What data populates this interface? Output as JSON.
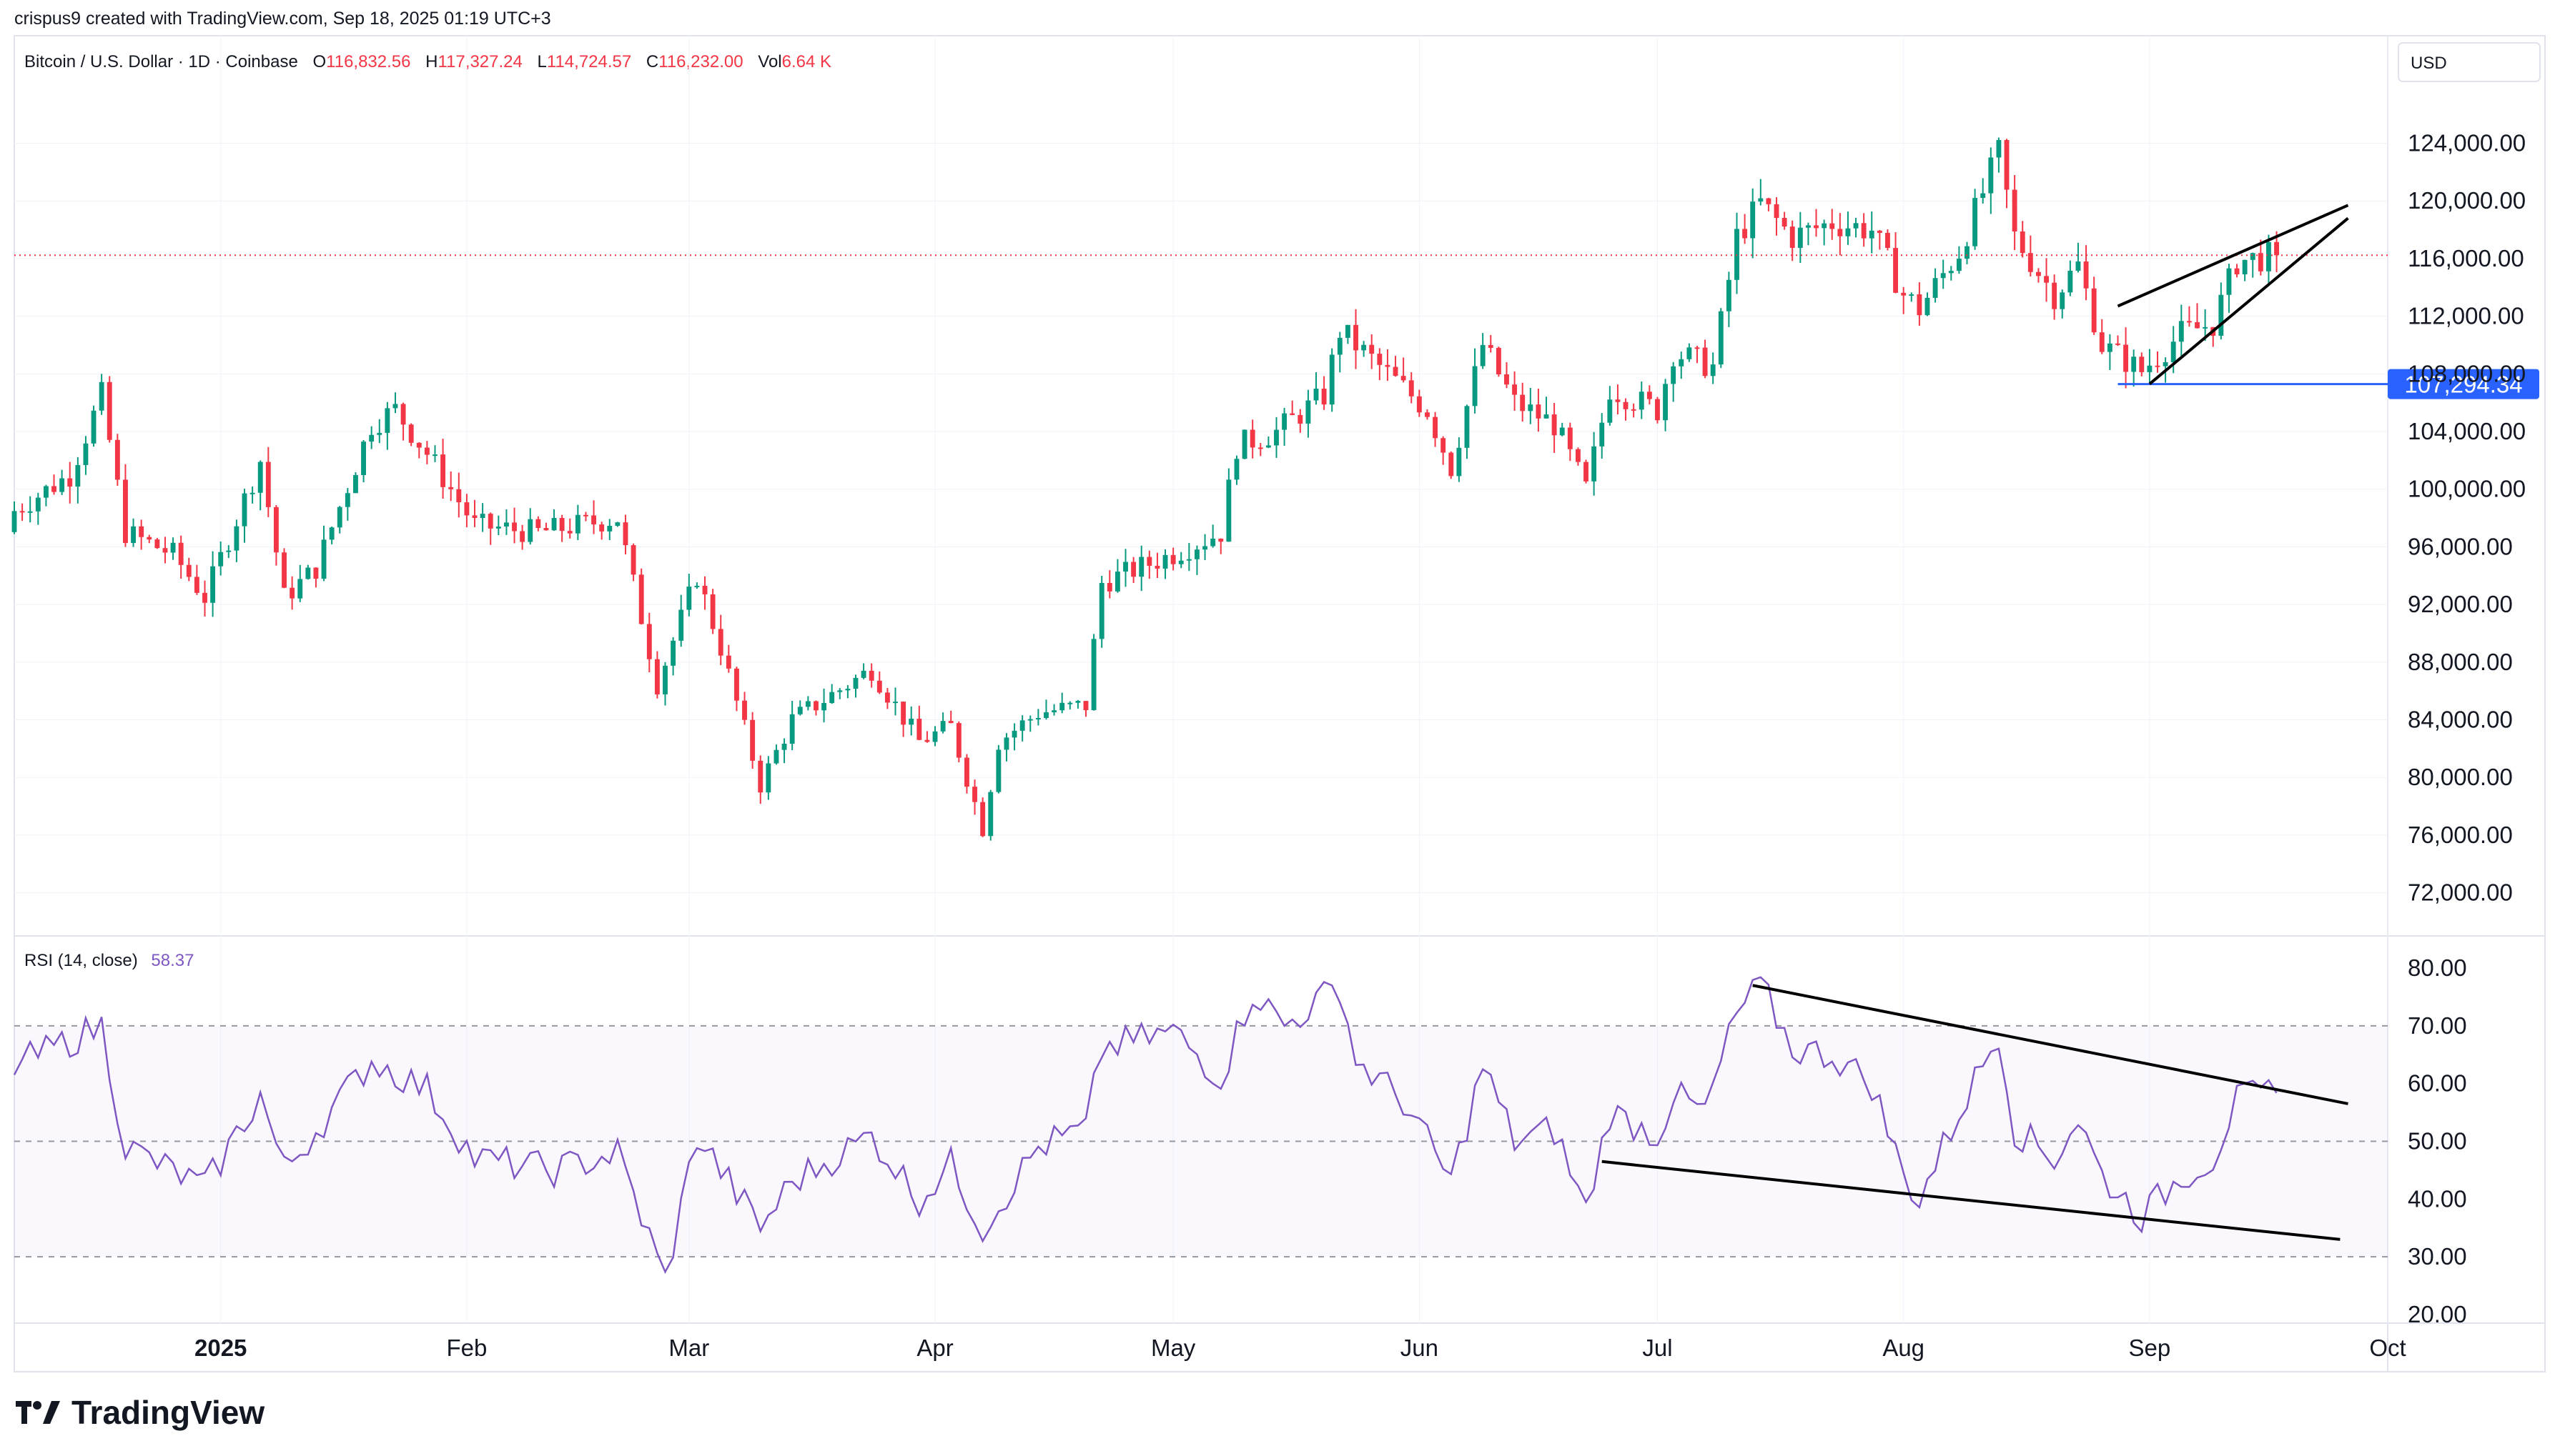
{
  "credit": "crispus9 created with TradingView.com, Sep 18, 2025 01:19 UTC+3",
  "symbol": {
    "name": "Bitcoin / U.S. Dollar · 1D · Coinbase",
    "o_label": "O",
    "o_value": "116,832.56",
    "h_label": "H",
    "h_value": "117,327.24",
    "l_label": "L",
    "l_value": "114,724.57",
    "c_label": "C",
    "c_value": "116,232.00",
    "vol_label": "Vol",
    "vol_value": "6.64 K"
  },
  "currency": "USD",
  "support_label": "107,294.34",
  "price_ticks": [
    "124,000.00",
    "120,000.00",
    "116,000.00",
    "112,000.00",
    "104,000.00",
    "100,000.00",
    "96,000.00",
    "92,000.00",
    "88,000.00",
    "84,000.00",
    "80,000.00",
    "76,000.00",
    "72,000.00"
  ],
  "hidden_tick": "108,000.00",
  "rsi": {
    "label": "RSI (14, close)",
    "value": "58.37"
  },
  "rsi_ticks": [
    "80.00",
    "70.00",
    "60.00",
    "50.00",
    "40.00",
    "30.00",
    "20.00"
  ],
  "date_ticks": [
    "2025",
    "Feb",
    "Mar",
    "Apr",
    "May",
    "Jun",
    "Jul",
    "Aug",
    "Sep",
    "Oct"
  ],
  "brand": "TradingView",
  "colors": {
    "up": "#089981",
    "down": "#f23645",
    "blue": "#2962ff",
    "rsi": "#7e57c2",
    "grid": "#f0f3fa",
    "text": "#131722"
  },
  "chart_data": [
    {
      "type": "candlestick",
      "title": "Bitcoin / U.S. Dollar · 1D · Coinbase",
      "x_range": [
        "2024-12-06",
        "2025-10-01"
      ],
      "y_range": [
        70000,
        127000
      ],
      "y_ticks": [
        72000,
        76000,
        80000,
        84000,
        88000,
        92000,
        96000,
        100000,
        104000,
        108000,
        112000,
        116000,
        120000,
        124000
      ],
      "last_price_line": 116232,
      "support_line": 107294.34,
      "anchors": [
        {
          "date": "2024-12-06",
          "price": 98500
        },
        {
          "date": "2024-12-13",
          "price": 101000
        },
        {
          "date": "2024-12-17",
          "price": 106500
        },
        {
          "date": "2024-12-20",
          "price": 97000
        },
        {
          "date": "2024-12-26",
          "price": 95500
        },
        {
          "date": "2024-12-30",
          "price": 92500
        },
        {
          "date": "2025-01-06",
          "price": 102000
        },
        {
          "date": "2025-01-09",
          "price": 92500
        },
        {
          "date": "2025-01-13",
          "price": 94500
        },
        {
          "date": "2025-01-20",
          "price": 104500
        },
        {
          "date": "2025-01-23",
          "price": 105500
        },
        {
          "date": "2025-01-27",
          "price": 102500
        },
        {
          "date": "2025-02-02",
          "price": 97500
        },
        {
          "date": "2025-02-10",
          "price": 97000
        },
        {
          "date": "2025-02-20",
          "price": 98000
        },
        {
          "date": "2025-02-25",
          "price": 86500
        },
        {
          "date": "2025-03-02",
          "price": 94000
        },
        {
          "date": "2025-03-05",
          "price": 89000
        },
        {
          "date": "2025-03-10",
          "price": 79500
        },
        {
          "date": "2025-03-14",
          "price": 84000
        },
        {
          "date": "2025-03-24",
          "price": 87500
        },
        {
          "date": "2025-03-30",
          "price": 82500
        },
        {
          "date": "2025-04-03",
          "price": 83500
        },
        {
          "date": "2025-04-07",
          "price": 76500
        },
        {
          "date": "2025-04-09",
          "price": 82500
        },
        {
          "date": "2025-04-14",
          "price": 84500
        },
        {
          "date": "2025-04-20",
          "price": 85000
        },
        {
          "date": "2025-04-22",
          "price": 93500
        },
        {
          "date": "2025-05-01",
          "price": 95500
        },
        {
          "date": "2025-05-07",
          "price": 97000
        },
        {
          "date": "2025-05-09",
          "price": 103000
        },
        {
          "date": "2025-05-14",
          "price": 104000
        },
        {
          "date": "2025-05-20",
          "price": 106500
        },
        {
          "date": "2025-05-22",
          "price": 111000
        },
        {
          "date": "2025-05-28",
          "price": 108000
        },
        {
          "date": "2025-06-02",
          "price": 105500
        },
        {
          "date": "2025-06-05",
          "price": 101500
        },
        {
          "date": "2025-06-09",
          "price": 110000
        },
        {
          "date": "2025-06-13",
          "price": 106000
        },
        {
          "date": "2025-06-18",
          "price": 104500
        },
        {
          "date": "2025-06-22",
          "price": 100000
        },
        {
          "date": "2025-06-25",
          "price": 107000
        },
        {
          "date": "2025-07-01",
          "price": 105500
        },
        {
          "date": "2025-07-03",
          "price": 109500
        },
        {
          "date": "2025-07-08",
          "price": 108500
        },
        {
          "date": "2025-07-11",
          "price": 117500
        },
        {
          "date": "2025-07-14",
          "price": 119800
        },
        {
          "date": "2025-07-18",
          "price": 117500
        },
        {
          "date": "2025-07-23",
          "price": 118500
        },
        {
          "date": "2025-07-28",
          "price": 118000
        },
        {
          "date": "2025-08-01",
          "price": 113500
        },
        {
          "date": "2025-08-03",
          "price": 112500
        },
        {
          "date": "2025-08-08",
          "price": 116500
        },
        {
          "date": "2025-08-13",
          "price": 123300
        },
        {
          "date": "2025-08-15",
          "price": 117500
        },
        {
          "date": "2025-08-20",
          "price": 113500
        },
        {
          "date": "2025-08-23",
          "price": 115500
        },
        {
          "date": "2025-08-26",
          "price": 110000
        },
        {
          "date": "2025-08-31",
          "price": 108200
        },
        {
          "date": "2025-09-05",
          "price": 110800
        },
        {
          "date": "2025-09-09",
          "price": 111500
        },
        {
          "date": "2025-09-12",
          "price": 115800
        },
        {
          "date": "2025-09-17",
          "price": 116232
        }
      ],
      "annotations": [
        {
          "type": "trendline",
          "label": "upper wedge",
          "from": {
            "date": "2025-08-28",
            "price": 112700
          },
          "to": {
            "date": "2025-09-26",
            "price": 119700
          }
        },
        {
          "type": "trendline",
          "label": "lower wedge",
          "from": {
            "date": "2025-09-01",
            "price": 107300
          },
          "to": {
            "date": "2025-09-26",
            "price": 118800
          }
        }
      ]
    },
    {
      "type": "line",
      "title": "RSI (14, close)",
      "y_range": [
        20,
        80
      ],
      "levels": [
        70,
        50,
        30
      ],
      "last_value": 58.37,
      "anchors": [
        {
          "date": "2024-12-06",
          "value": 63
        },
        {
          "date": "2024-12-17",
          "value": 70
        },
        {
          "date": "2024-12-20",
          "value": 49
        },
        {
          "date": "2024-12-30",
          "value": 42
        },
        {
          "date": "2025-01-06",
          "value": 58
        },
        {
          "date": "2025-01-09",
          "value": 45
        },
        {
          "date": "2025-01-20",
          "value": 64
        },
        {
          "date": "2025-01-27",
          "value": 59
        },
        {
          "date": "2025-02-02",
          "value": 47
        },
        {
          "date": "2025-02-12",
          "value": 45
        },
        {
          "date": "2025-02-20",
          "value": 48
        },
        {
          "date": "2025-02-26",
          "value": 26
        },
        {
          "date": "2025-03-02",
          "value": 51
        },
        {
          "date": "2025-03-10",
          "value": 35
        },
        {
          "date": "2025-03-14",
          "value": 43
        },
        {
          "date": "2025-03-24",
          "value": 51
        },
        {
          "date": "2025-03-30",
          "value": 40
        },
        {
          "date": "2025-04-03",
          "value": 46
        },
        {
          "date": "2025-04-07",
          "value": 35
        },
        {
          "date": "2025-04-14",
          "value": 49
        },
        {
          "date": "2025-04-20",
          "value": 52
        },
        {
          "date": "2025-04-22",
          "value": 66
        },
        {
          "date": "2025-05-01",
          "value": 69
        },
        {
          "date": "2025-05-07",
          "value": 61
        },
        {
          "date": "2025-05-11",
          "value": 76
        },
        {
          "date": "2025-05-15",
          "value": 70
        },
        {
          "date": "2025-05-22",
          "value": 77
        },
        {
          "date": "2025-05-24",
          "value": 64
        },
        {
          "date": "2025-05-30",
          "value": 57
        },
        {
          "date": "2025-06-05",
          "value": 43
        },
        {
          "date": "2025-06-09",
          "value": 63
        },
        {
          "date": "2025-06-13",
          "value": 50
        },
        {
          "date": "2025-06-18",
          "value": 52
        },
        {
          "date": "2025-06-22",
          "value": 38
        },
        {
          "date": "2025-06-25",
          "value": 55
        },
        {
          "date": "2025-07-01",
          "value": 51
        },
        {
          "date": "2025-07-03",
          "value": 58
        },
        {
          "date": "2025-07-07",
          "value": 55
        },
        {
          "date": "2025-07-11",
          "value": 72
        },
        {
          "date": "2025-07-14",
          "value": 77
        },
        {
          "date": "2025-07-18",
          "value": 66
        },
        {
          "date": "2025-07-23",
          "value": 65
        },
        {
          "date": "2025-07-28",
          "value": 60
        },
        {
          "date": "2025-08-01",
          "value": 44
        },
        {
          "date": "2025-08-03",
          "value": 40
        },
        {
          "date": "2025-08-08",
          "value": 55
        },
        {
          "date": "2025-08-13",
          "value": 69
        },
        {
          "date": "2025-08-15",
          "value": 52
        },
        {
          "date": "2025-08-20",
          "value": 47
        },
        {
          "date": "2025-08-23",
          "value": 54
        },
        {
          "date": "2025-08-26",
          "value": 44
        },
        {
          "date": "2025-08-31",
          "value": 37
        },
        {
          "date": "2025-09-05",
          "value": 44
        },
        {
          "date": "2025-09-09",
          "value": 47
        },
        {
          "date": "2025-09-12",
          "value": 57
        },
        {
          "date": "2025-09-17",
          "value": 58.37
        }
      ],
      "annotations": [
        {
          "type": "trendline",
          "label": "upper RSI line",
          "from": {
            "date": "2025-07-13",
            "value": 77
          },
          "to": {
            "date": "2025-09-26",
            "value": 56.5
          }
        },
        {
          "type": "trendline",
          "label": "lower RSI line",
          "from": {
            "date": "2025-06-24",
            "value": 46.5
          },
          "to": {
            "date": "2025-09-25",
            "value": 33
          }
        }
      ]
    }
  ]
}
